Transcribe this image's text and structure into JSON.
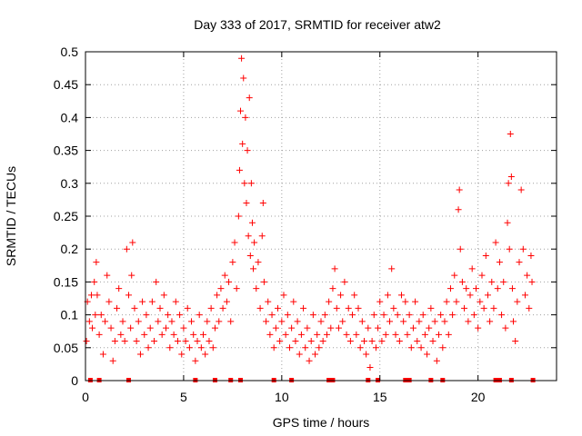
{
  "chart_data": {
    "type": "scatter",
    "title": "Day 333 of 2017, SRMTID for receiver atw2",
    "xlabel": "GPS time / hours",
    "ylabel": "SRMTID / TECUs",
    "xlim": [
      0,
      24
    ],
    "ylim": [
      0,
      0.5
    ],
    "xticks": [
      0,
      5,
      10,
      15,
      20
    ],
    "yticks": [
      0,
      0.05,
      0.1,
      0.15,
      0.2,
      0.25,
      0.3,
      0.35,
      0.4,
      0.45,
      0.5
    ],
    "xtick_labels": [
      "0",
      "5",
      "10",
      "15",
      "20"
    ],
    "ytick_labels": [
      "0",
      "0.05",
      "0.1",
      "0.15",
      "0.2",
      "0.25",
      "0.3",
      "0.35",
      "0.4",
      "0.45",
      "0.5"
    ],
    "grid": true,
    "legend": "none",
    "marker": "+",
    "series": [
      {
        "name": "SRMTID",
        "color": "#ff0000",
        "points": [
          [
            0.05,
            0.06
          ],
          [
            0.1,
            0.12
          ],
          [
            0.2,
            0.09
          ],
          [
            0.3,
            0.13
          ],
          [
            0.35,
            0.08
          ],
          [
            0.45,
            0.15
          ],
          [
            0.5,
            0.1
          ],
          [
            0.55,
            0.18
          ],
          [
            0.6,
            0.13
          ],
          [
            0.7,
            0.07
          ],
          [
            0.8,
            0.1
          ],
          [
            0.9,
            0.04
          ],
          [
            1.0,
            0.09
          ],
          [
            1.1,
            0.16
          ],
          [
            1.2,
            0.12
          ],
          [
            1.3,
            0.08
          ],
          [
            1.4,
            0.03
          ],
          [
            1.5,
            0.06
          ],
          [
            1.6,
            0.11
          ],
          [
            1.7,
            0.14
          ],
          [
            1.8,
            0.07
          ],
          [
            1.9,
            0.09
          ],
          [
            2.0,
            0.06
          ],
          [
            2.1,
            0.2
          ],
          [
            2.2,
            0.13
          ],
          [
            2.3,
            0.08
          ],
          [
            2.35,
            0.16
          ],
          [
            2.4,
            0.21
          ],
          [
            2.5,
            0.11
          ],
          [
            2.6,
            0.06
          ],
          [
            2.7,
            0.09
          ],
          [
            2.8,
            0.04
          ],
          [
            2.9,
            0.12
          ],
          [
            3.0,
            0.07
          ],
          [
            3.1,
            0.1
          ],
          [
            3.2,
            0.05
          ],
          [
            3.3,
            0.08
          ],
          [
            3.4,
            0.12
          ],
          [
            3.5,
            0.06
          ],
          [
            3.6,
            0.15
          ],
          [
            3.7,
            0.09
          ],
          [
            3.8,
            0.11
          ],
          [
            3.9,
            0.07
          ],
          [
            4.0,
            0.13
          ],
          [
            4.1,
            0.08
          ],
          [
            4.2,
            0.1
          ],
          [
            4.3,
            0.05
          ],
          [
            4.4,
            0.09
          ],
          [
            4.5,
            0.07
          ],
          [
            4.6,
            0.12
          ],
          [
            4.7,
            0.06
          ],
          [
            4.8,
            0.1
          ],
          [
            4.9,
            0.04
          ],
          [
            5.0,
            0.08
          ],
          [
            5.1,
            0.06
          ],
          [
            5.2,
            0.11
          ],
          [
            5.3,
            0.05
          ],
          [
            5.4,
            0.09
          ],
          [
            5.5,
            0.07
          ],
          [
            5.6,
            0.03
          ],
          [
            5.7,
            0.06
          ],
          [
            5.8,
            0.1
          ],
          [
            5.9,
            0.05
          ],
          [
            6.0,
            0.07
          ],
          [
            6.1,
            0.04
          ],
          [
            6.2,
            0.09
          ],
          [
            6.3,
            0.06
          ],
          [
            6.4,
            0.11
          ],
          [
            6.5,
            0.05
          ],
          [
            6.6,
            0.08
          ],
          [
            6.7,
            0.13
          ],
          [
            6.8,
            0.09
          ],
          [
            6.9,
            0.14
          ],
          [
            7.0,
            0.11
          ],
          [
            7.1,
            0.16
          ],
          [
            7.2,
            0.12
          ],
          [
            7.3,
            0.15
          ],
          [
            7.4,
            0.09
          ],
          [
            7.5,
            0.18
          ],
          [
            7.6,
            0.21
          ],
          [
            7.7,
            0.14
          ],
          [
            7.8,
            0.25
          ],
          [
            7.85,
            0.32
          ],
          [
            7.9,
            0.41
          ],
          [
            7.95,
            0.49
          ],
          [
            8.0,
            0.36
          ],
          [
            8.05,
            0.46
          ],
          [
            8.1,
            0.3
          ],
          [
            8.15,
            0.4
          ],
          [
            8.2,
            0.27
          ],
          [
            8.25,
            0.35
          ],
          [
            8.3,
            0.22
          ],
          [
            8.35,
            0.43
          ],
          [
            8.4,
            0.19
          ],
          [
            8.45,
            0.3
          ],
          [
            8.5,
            0.24
          ],
          [
            8.55,
            0.17
          ],
          [
            8.6,
            0.21
          ],
          [
            8.7,
            0.14
          ],
          [
            8.8,
            0.18
          ],
          [
            8.9,
            0.11
          ],
          [
            9.0,
            0.22
          ],
          [
            9.05,
            0.27
          ],
          [
            9.1,
            0.15
          ],
          [
            9.2,
            0.09
          ],
          [
            9.3,
            0.12
          ],
          [
            9.4,
            0.07
          ],
          [
            9.5,
            0.1
          ],
          [
            9.6,
            0.05
          ],
          [
            9.7,
            0.08
          ],
          [
            9.8,
            0.11
          ],
          [
            9.9,
            0.06
          ],
          [
            10.0,
            0.09
          ],
          [
            10.1,
            0.13
          ],
          [
            10.2,
            0.07
          ],
          [
            10.3,
            0.1
          ],
          [
            10.4,
            0.05
          ],
          [
            10.5,
            0.08
          ],
          [
            10.6,
            0.12
          ],
          [
            10.7,
            0.06
          ],
          [
            10.8,
            0.09
          ],
          [
            10.9,
            0.04
          ],
          [
            11.0,
            0.07
          ],
          [
            11.1,
            0.11
          ],
          [
            11.2,
            0.05
          ],
          [
            11.3,
            0.08
          ],
          [
            11.4,
            0.03
          ],
          [
            11.5,
            0.06
          ],
          [
            11.6,
            0.1
          ],
          [
            11.7,
            0.04
          ],
          [
            11.8,
            0.07
          ],
          [
            11.9,
            0.05
          ],
          [
            12.0,
            0.09
          ],
          [
            12.1,
            0.06
          ],
          [
            12.2,
            0.1
          ],
          [
            12.3,
            0.07
          ],
          [
            12.4,
            0.12
          ],
          [
            12.5,
            0.08
          ],
          [
            12.6,
            0.14
          ],
          [
            12.7,
            0.17
          ],
          [
            12.8,
            0.11
          ],
          [
            12.9,
            0.08
          ],
          [
            13.0,
            0.13
          ],
          [
            13.1,
            0.09
          ],
          [
            13.2,
            0.15
          ],
          [
            13.3,
            0.07
          ],
          [
            13.4,
            0.11
          ],
          [
            13.5,
            0.06
          ],
          [
            13.6,
            0.1
          ],
          [
            13.7,
            0.13
          ],
          [
            13.8,
            0.07
          ],
          [
            13.9,
            0.11
          ],
          [
            14.0,
            0.05
          ],
          [
            14.1,
            0.09
          ],
          [
            14.2,
            0.06
          ],
          [
            14.3,
            0.04
          ],
          [
            14.4,
            0.08
          ],
          [
            14.5,
            0.02
          ],
          [
            14.6,
            0.06
          ],
          [
            14.7,
            0.1
          ],
          [
            14.8,
            0.05
          ],
          [
            14.9,
            0.08
          ],
          [
            15.0,
            0.12
          ],
          [
            15.1,
            0.06
          ],
          [
            15.2,
            0.1
          ],
          [
            15.3,
            0.07
          ],
          [
            15.4,
            0.13
          ],
          [
            15.5,
            0.09
          ],
          [
            15.6,
            0.17
          ],
          [
            15.7,
            0.11
          ],
          [
            15.8,
            0.07
          ],
          [
            15.9,
            0.1
          ],
          [
            16.0,
            0.06
          ],
          [
            16.1,
            0.13
          ],
          [
            16.2,
            0.09
          ],
          [
            16.3,
            0.12
          ],
          [
            16.4,
            0.07
          ],
          [
            16.5,
            0.1
          ],
          [
            16.6,
            0.05
          ],
          [
            16.7,
            0.08
          ],
          [
            16.8,
            0.12
          ],
          [
            16.9,
            0.06
          ],
          [
            17.0,
            0.09
          ],
          [
            17.1,
            0.05
          ],
          [
            17.2,
            0.1
          ],
          [
            17.3,
            0.07
          ],
          [
            17.4,
            0.04
          ],
          [
            17.5,
            0.08
          ],
          [
            17.6,
            0.11
          ],
          [
            17.7,
            0.06
          ],
          [
            17.8,
            0.09
          ],
          [
            17.9,
            0.03
          ],
          [
            18.0,
            0.07
          ],
          [
            18.1,
            0.1
          ],
          [
            18.2,
            0.05
          ],
          [
            18.3,
            0.09
          ],
          [
            18.4,
            0.12
          ],
          [
            18.5,
            0.07
          ],
          [
            18.6,
            0.14
          ],
          [
            18.7,
            0.1
          ],
          [
            18.8,
            0.16
          ],
          [
            18.9,
            0.12
          ],
          [
            19.0,
            0.26
          ],
          [
            19.05,
            0.29
          ],
          [
            19.1,
            0.2
          ],
          [
            19.2,
            0.15
          ],
          [
            19.3,
            0.11
          ],
          [
            19.4,
            0.14
          ],
          [
            19.5,
            0.09
          ],
          [
            19.6,
            0.13
          ],
          [
            19.7,
            0.17
          ],
          [
            19.8,
            0.1
          ],
          [
            19.9,
            0.14
          ],
          [
            20.0,
            0.08
          ],
          [
            20.1,
            0.12
          ],
          [
            20.2,
            0.16
          ],
          [
            20.3,
            0.11
          ],
          [
            20.4,
            0.19
          ],
          [
            20.5,
            0.13
          ],
          [
            20.6,
            0.09
          ],
          [
            20.7,
            0.15
          ],
          [
            20.8,
            0.11
          ],
          [
            20.9,
            0.21
          ],
          [
            21.0,
            0.14
          ],
          [
            21.1,
            0.18
          ],
          [
            21.2,
            0.1
          ],
          [
            21.3,
            0.15
          ],
          [
            21.4,
            0.08
          ],
          [
            21.5,
            0.24
          ],
          [
            21.55,
            0.3
          ],
          [
            21.6,
            0.2
          ],
          [
            21.65,
            0.375
          ],
          [
            21.7,
            0.31
          ],
          [
            21.75,
            0.14
          ],
          [
            21.8,
            0.09
          ],
          [
            21.9,
            0.06
          ],
          [
            22.0,
            0.12
          ],
          [
            22.1,
            0.18
          ],
          [
            22.2,
            0.29
          ],
          [
            22.3,
            0.2
          ],
          [
            22.4,
            0.13
          ],
          [
            22.5,
            0.16
          ],
          [
            22.6,
            0.11
          ],
          [
            22.7,
            0.19
          ],
          [
            22.75,
            0.15
          ]
        ]
      }
    ],
    "baseline_markers": [
      0.25,
      0.7,
      2.2,
      5.6,
      6.6,
      7.4,
      7.9,
      9.6,
      10.5,
      12.4,
      12.6,
      14.4,
      14.9,
      16.3,
      16.5,
      17.6,
      18.2,
      20.9,
      21.1,
      21.7,
      22.8
    ]
  }
}
